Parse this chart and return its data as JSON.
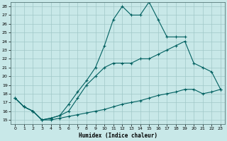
{
  "xlabel": "Humidex (Indice chaleur)",
  "xlim": [
    -0.5,
    23.5
  ],
  "ylim": [
    14.5,
    28.5
  ],
  "xticks": [
    0,
    1,
    2,
    3,
    4,
    5,
    6,
    7,
    8,
    9,
    10,
    11,
    12,
    13,
    14,
    15,
    16,
    17,
    18,
    19,
    20,
    21,
    22,
    23
  ],
  "yticks": [
    15,
    16,
    17,
    18,
    19,
    20,
    21,
    22,
    23,
    24,
    25,
    26,
    27,
    28
  ],
  "background_color": "#c8e8e8",
  "grid_color": "#a0c8c8",
  "line_color": "#006060",
  "line1_x": [
    0,
    1,
    2,
    3,
    4,
    5,
    6,
    7,
    8,
    9,
    10,
    11,
    12,
    13,
    14,
    15,
    16,
    17,
    18,
    19
  ],
  "line1_y": [
    17.5,
    16.5,
    16.0,
    15.0,
    15.2,
    15.5,
    16.8,
    18.2,
    19.5,
    21.0,
    23.5,
    26.5,
    28.0,
    27.0,
    27.0,
    28.5,
    26.5,
    24.5,
    24.5,
    24.5
  ],
  "line2_x": [
    0,
    1,
    2,
    3,
    4,
    5,
    6,
    7,
    8,
    9,
    10,
    11,
    12,
    13,
    14,
    15,
    16,
    17,
    18,
    19,
    20,
    21,
    22,
    23
  ],
  "line2_y": [
    17.5,
    16.5,
    16.0,
    15.0,
    15.2,
    15.5,
    16.0,
    17.5,
    19.0,
    20.0,
    21.0,
    21.5,
    21.5,
    21.5,
    22.0,
    22.0,
    22.5,
    23.0,
    23.5,
    24.0,
    21.5,
    21.0,
    20.5,
    18.5
  ],
  "line3_x": [
    0,
    1,
    2,
    3,
    4,
    5,
    6,
    7,
    8,
    9,
    10,
    11,
    12,
    13,
    14,
    15,
    16,
    17,
    18,
    19,
    20,
    21,
    22,
    23
  ],
  "line3_y": [
    17.5,
    16.5,
    16.0,
    15.0,
    15.0,
    15.2,
    15.4,
    15.6,
    15.8,
    16.0,
    16.2,
    16.5,
    16.8,
    17.0,
    17.2,
    17.5,
    17.8,
    18.0,
    18.2,
    18.5,
    18.5,
    18.0,
    18.2,
    18.5
  ]
}
